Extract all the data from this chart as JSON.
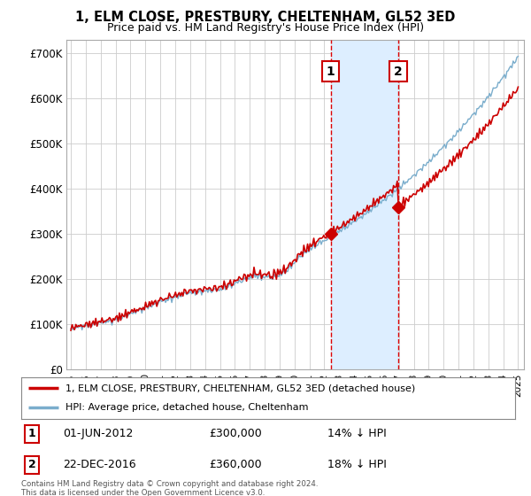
{
  "title": "1, ELM CLOSE, PRESTBURY, CHELTENHAM, GL52 3ED",
  "subtitle": "Price paid vs. HM Land Registry's House Price Index (HPI)",
  "ylim": [
    0,
    730000
  ],
  "yticks": [
    0,
    100000,
    200000,
    300000,
    400000,
    500000,
    600000,
    700000
  ],
  "ytick_labels": [
    "£0",
    "£100K",
    "£200K",
    "£300K",
    "£400K",
    "£500K",
    "£600K",
    "£700K"
  ],
  "red_color": "#cc0000",
  "blue_color": "#7aadcc",
  "span_color": "#ddeeff",
  "marker1_x": 2012.42,
  "marker1_price": 300000,
  "marker2_x": 2016.97,
  "marker2_price": 360000,
  "legend1": "1, ELM CLOSE, PRESTBURY, CHELTENHAM, GL52 3ED (detached house)",
  "legend2": "HPI: Average price, detached house, Cheltenham",
  "annotation1_label": "1",
  "annotation1_date": "01-JUN-2012",
  "annotation1_price": "£300,000",
  "annotation1_hpi": "14% ↓ HPI",
  "annotation2_label": "2",
  "annotation2_date": "22-DEC-2016",
  "annotation2_price": "£360,000",
  "annotation2_hpi": "18% ↓ HPI",
  "footer": "Contains HM Land Registry data © Crown copyright and database right 2024.\nThis data is licensed under the Open Government Licence v3.0.",
  "bg_color": "#ffffff"
}
